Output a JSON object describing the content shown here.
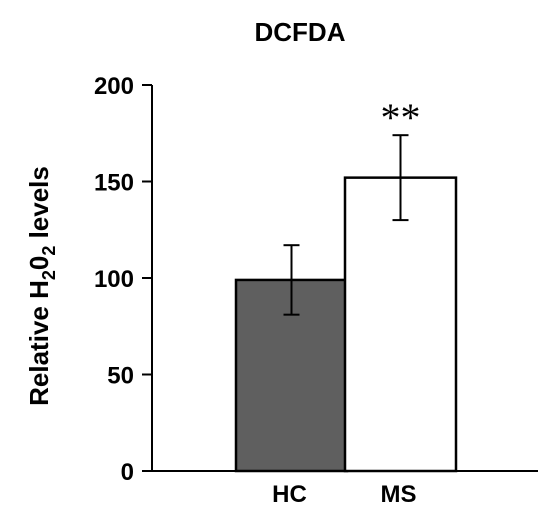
{
  "chart_data": {
    "type": "bar",
    "title": "DCFDA",
    "ylabel": {
      "prefix": "Relative H",
      "sub1": "2",
      "mid": "0",
      "sub2": "2",
      "suffix": " levels"
    },
    "xlabel": "",
    "ylim": [
      0,
      200
    ],
    "yticks": [
      "0",
      "50",
      "100",
      "150",
      "200"
    ],
    "categories": [
      "HC",
      "MS"
    ],
    "values": [
      99,
      152
    ],
    "errors": [
      18,
      22
    ],
    "bar_colors": [
      "#5f5f5f",
      "#ffffff"
    ],
    "significance": [
      "",
      "**"
    ],
    "grid": false
  }
}
